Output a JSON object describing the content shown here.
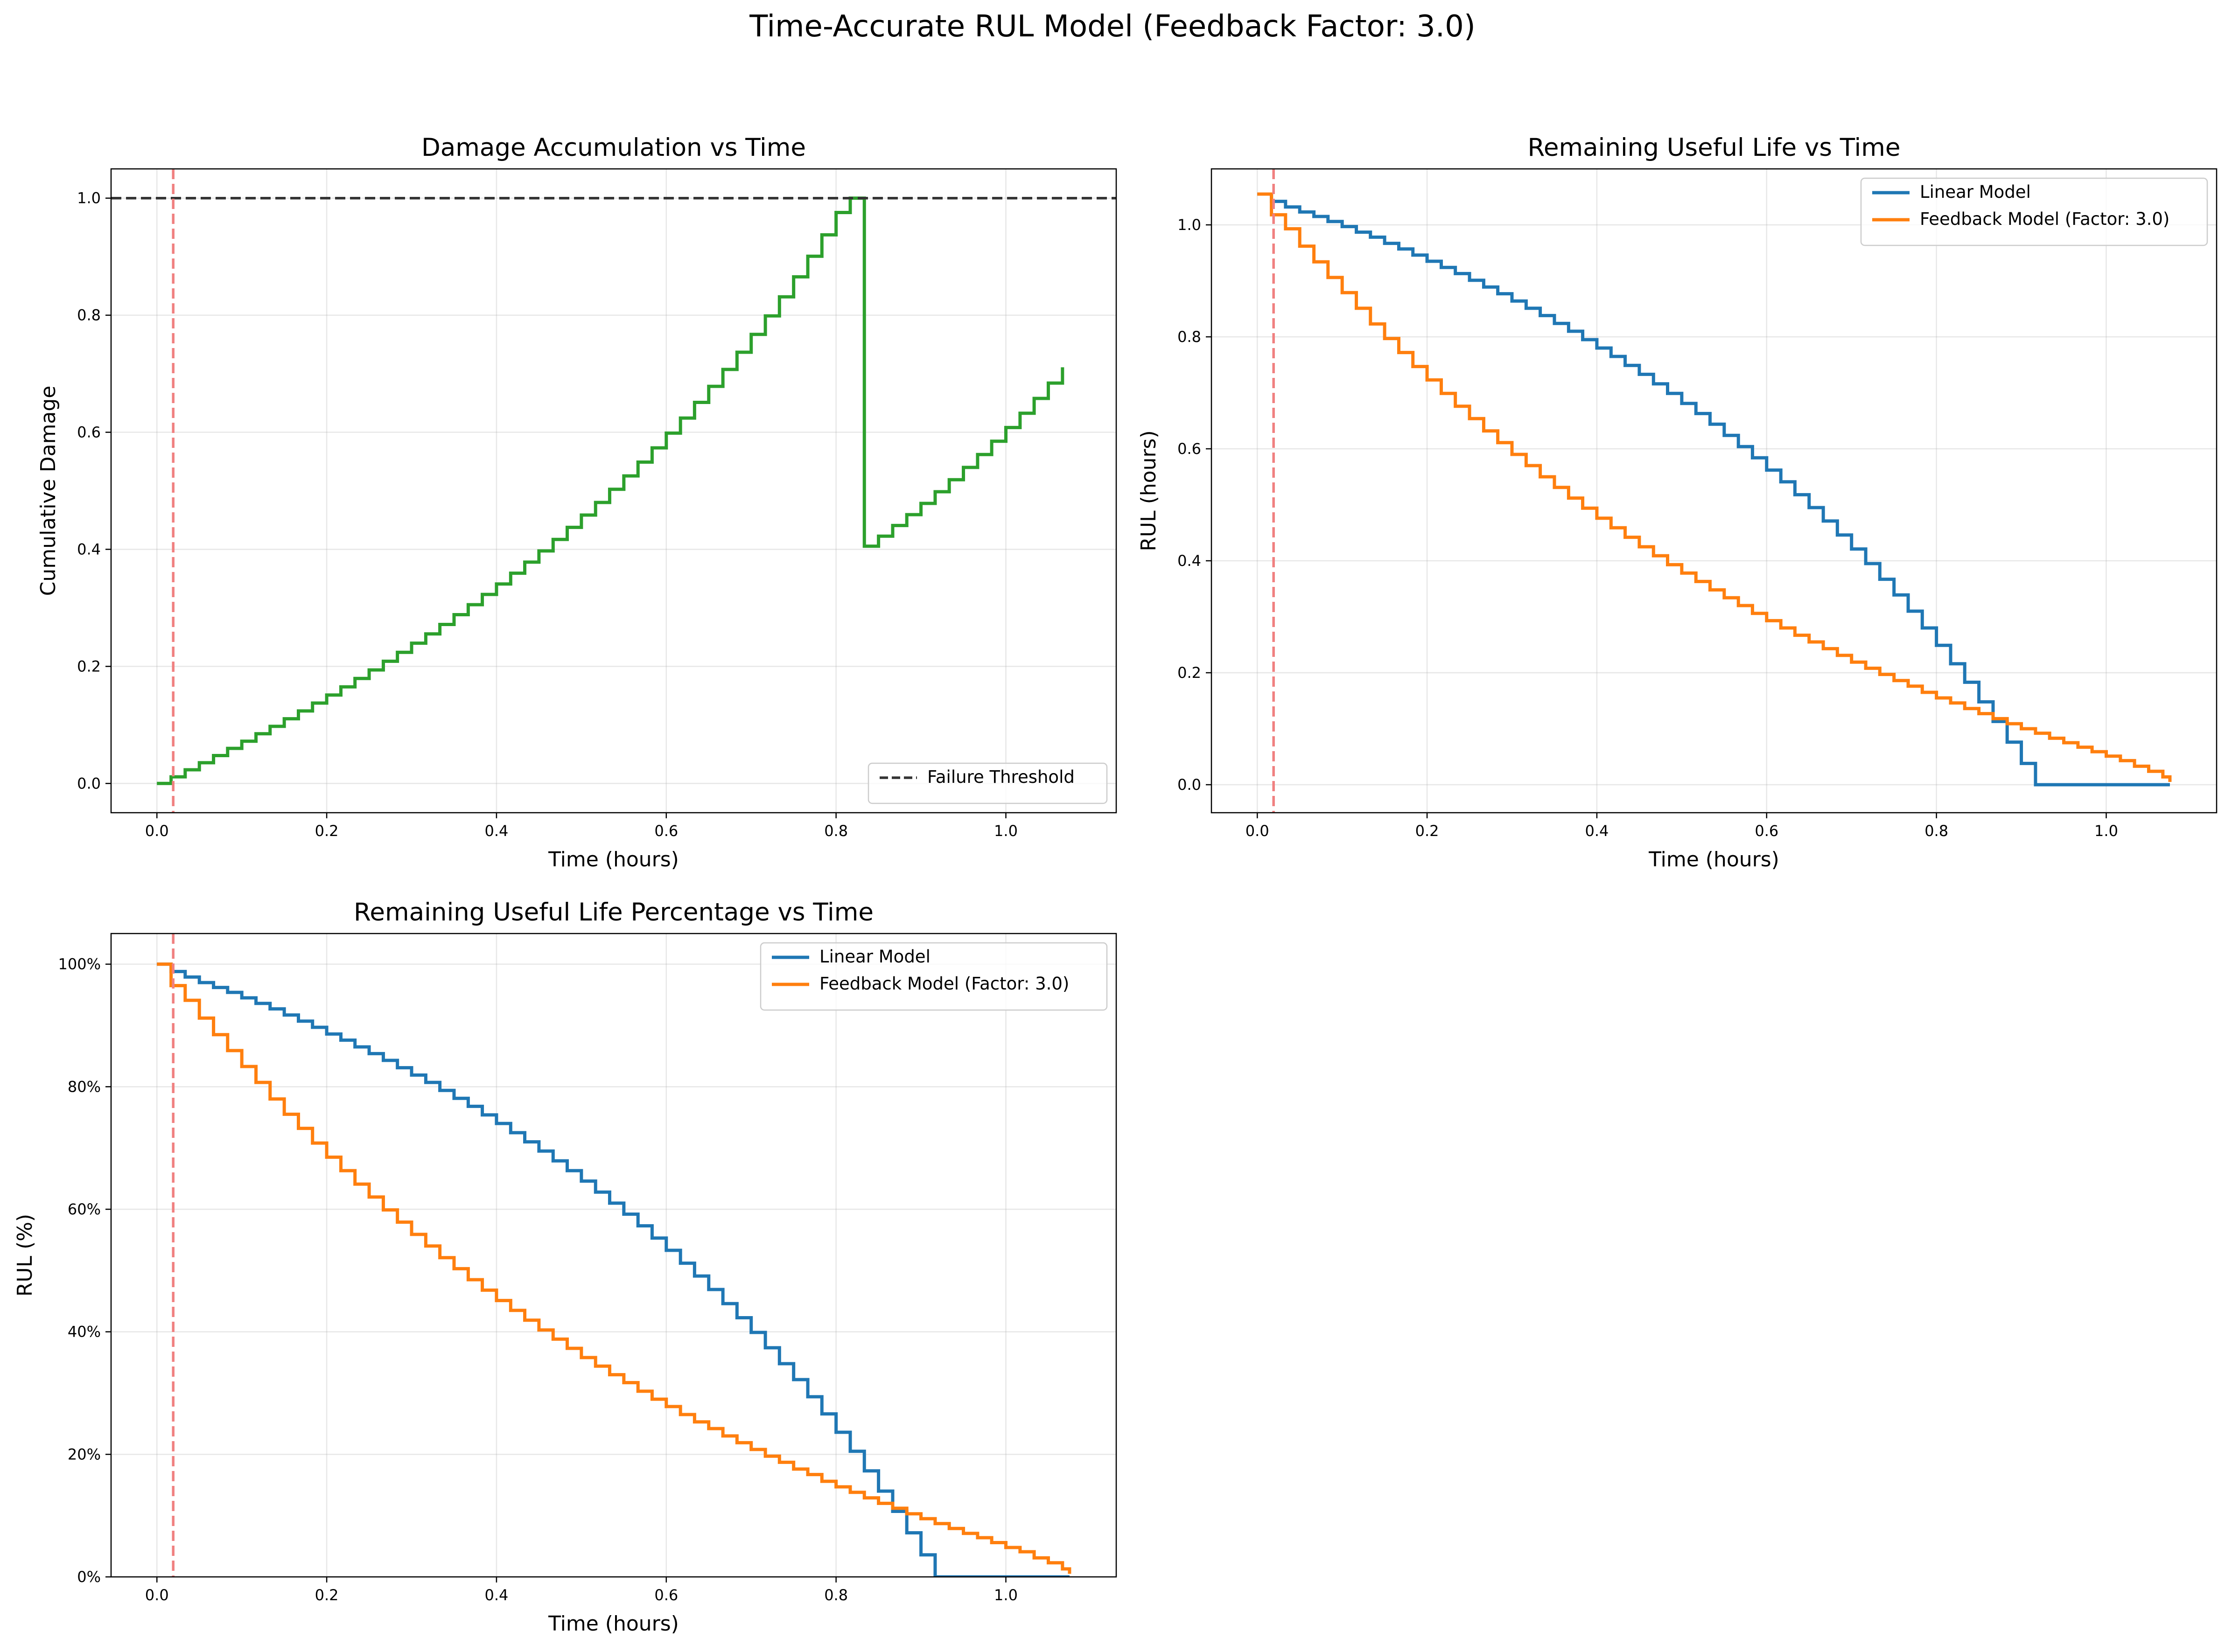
{
  "figure": {
    "suptitle": "Time-Accurate RUL Model (Feedback Factor: 3.0)"
  },
  "chart_data": [
    {
      "type": "line",
      "title": "Damage Accumulation vs Time",
      "xlabel": "Time (hours)",
      "ylabel": "Cumulative Damage",
      "xlim": [
        -0.054,
        1.13
      ],
      "ylim": [
        -0.05,
        1.05
      ],
      "xticks": [
        0.0,
        0.2,
        0.4,
        0.6,
        0.8,
        1.0
      ],
      "xtick_labels": [
        "0.0",
        "0.2",
        "0.4",
        "0.6",
        "0.8",
        "1.0"
      ],
      "yticks": [
        0.0,
        0.2,
        0.4,
        0.6,
        0.8,
        1.0
      ],
      "ytick_labels": [
        "0.0",
        "0.2",
        "0.4",
        "0.6",
        "0.8",
        "1.0"
      ],
      "grid": true,
      "legend_position": "lower right",
      "series": [
        {
          "name": "",
          "color": "#2ca02c",
          "style": "steps",
          "x": [
            0.0,
            0.0167,
            0.0333,
            0.05,
            0.0667,
            0.0833,
            0.1,
            0.1167,
            0.1333,
            0.15,
            0.1667,
            0.1833,
            0.2,
            0.2167,
            0.2333,
            0.25,
            0.2667,
            0.2833,
            0.3,
            0.3167,
            0.3333,
            0.35,
            0.3667,
            0.3833,
            0.4,
            0.4167,
            0.4333,
            0.45,
            0.4667,
            0.4833,
            0.5,
            0.5167,
            0.5333,
            0.55,
            0.5667,
            0.5833,
            0.6,
            0.6167,
            0.6333,
            0.65,
            0.6667,
            0.6833,
            0.7,
            0.7167,
            0.7333,
            0.75,
            0.7667,
            0.7833,
            0.8,
            0.8167,
            0.8333,
            0.85,
            0.8667,
            0.8833,
            0.9,
            0.9167,
            0.9333,
            0.95,
            0.9667,
            0.9833,
            1.0,
            1.0167,
            1.0333,
            1.05,
            1.0667
          ],
          "y": [
            0.0,
            0.0113,
            0.0233,
            0.0354,
            0.0476,
            0.0599,
            0.0722,
            0.0849,
            0.0976,
            0.1105,
            0.1239,
            0.1373,
            0.1511,
            0.165,
            0.1794,
            0.1939,
            0.2088,
            0.224,
            0.2396,
            0.2555,
            0.2716,
            0.2884,
            0.3054,
            0.3229,
            0.3408,
            0.3592,
            0.3781,
            0.3973,
            0.4169,
            0.4375,
            0.4586,
            0.4801,
            0.5026,
            0.5254,
            0.549,
            0.5733,
            0.5985,
            0.6242,
            0.6511,
            0.6785,
            0.7073,
            0.7367,
            0.7672,
            0.7988,
            0.8314,
            0.8656,
            0.9007,
            0.9373,
            0.9755,
            1.0,
            0.4053,
            0.4225,
            0.4407,
            0.4592,
            0.4785,
            0.4984,
            0.5189,
            0.54,
            0.562,
            0.5847,
            0.6081,
            0.6325,
            0.6578,
            0.684,
            0.711
          ]
        }
      ],
      "reference_lines": [
        {
          "orientation": "horizontal",
          "value": 1.0,
          "label": "Failure Threshold",
          "color": "#333333",
          "style": "dashed"
        },
        {
          "orientation": "vertical",
          "value": 0.0192,
          "label": "",
          "color": "#f08080",
          "style": "dashed"
        }
      ]
    },
    {
      "type": "line",
      "title": "Remaining Useful Life vs Time",
      "xlabel": "Time (hours)",
      "ylabel": "RUL (hours)",
      "xlim": [
        -0.054,
        1.13
      ],
      "ylim": [
        -0.05,
        1.1
      ],
      "xticks": [
        0.0,
        0.2,
        0.4,
        0.6,
        0.8,
        1.0
      ],
      "xtick_labels": [
        "0.0",
        "0.2",
        "0.4",
        "0.6",
        "0.8",
        "1.0"
      ],
      "yticks": [
        0.0,
        0.2,
        0.4,
        0.6,
        0.8,
        1.0
      ],
      "ytick_labels": [
        "0.0",
        "0.2",
        "0.4",
        "0.6",
        "0.8",
        "1.0"
      ],
      "grid": true,
      "legend_position": "upper right",
      "series": [
        {
          "name": "Linear Model",
          "color": "#1f77b4",
          "style": "steps",
          "x": [
            0.0,
            0.0167,
            0.0333,
            0.05,
            0.0667,
            0.0833,
            0.1,
            0.1167,
            0.1333,
            0.15,
            0.1667,
            0.1833,
            0.2,
            0.2167,
            0.2333,
            0.25,
            0.2667,
            0.2833,
            0.3,
            0.3167,
            0.3333,
            0.35,
            0.3667,
            0.3833,
            0.4,
            0.4167,
            0.4333,
            0.45,
            0.4667,
            0.4833,
            0.5,
            0.5167,
            0.5333,
            0.55,
            0.5667,
            0.5833,
            0.6,
            0.6167,
            0.6333,
            0.65,
            0.6667,
            0.6833,
            0.7,
            0.7167,
            0.7333,
            0.75,
            0.7667,
            0.7833,
            0.8,
            0.8167,
            0.8333,
            0.85,
            0.8667,
            0.8833,
            0.9,
            0.9167,
            0.9333,
            0.95,
            0.9667,
            0.9833,
            1.0,
            1.0167,
            1.0333,
            1.05,
            1.0667,
            1.075
          ],
          "y": [
            1.055,
            1.042,
            1.032,
            1.023,
            1.015,
            1.006,
            0.997,
            0.987,
            0.978,
            0.967,
            0.957,
            0.946,
            0.935,
            0.924,
            0.913,
            0.901,
            0.889,
            0.877,
            0.864,
            0.851,
            0.838,
            0.824,
            0.81,
            0.795,
            0.78,
            0.765,
            0.749,
            0.733,
            0.716,
            0.699,
            0.681,
            0.663,
            0.644,
            0.624,
            0.604,
            0.584,
            0.562,
            0.541,
            0.518,
            0.495,
            0.471,
            0.446,
            0.421,
            0.395,
            0.367,
            0.339,
            0.31,
            0.28,
            0.249,
            0.216,
            0.183,
            0.148,
            0.113,
            0.076,
            0.038,
            0.0,
            0.0,
            0.0,
            0.0,
            0.0,
            0.0,
            0.0,
            0.0,
            0.0,
            0.0,
            0.0
          ]
        },
        {
          "name": "Feedback Model (Factor: 3.0)",
          "color": "#ff7f0e",
          "style": "steps",
          "x": [
            0.0,
            0.0167,
            0.0333,
            0.05,
            0.0667,
            0.0833,
            0.1,
            0.1167,
            0.1333,
            0.15,
            0.1667,
            0.1833,
            0.2,
            0.2167,
            0.2333,
            0.25,
            0.2667,
            0.2833,
            0.3,
            0.3167,
            0.3333,
            0.35,
            0.3667,
            0.3833,
            0.4,
            0.4167,
            0.4333,
            0.45,
            0.4667,
            0.4833,
            0.5,
            0.5167,
            0.5333,
            0.55,
            0.5667,
            0.5833,
            0.6,
            0.6167,
            0.6333,
            0.65,
            0.6667,
            0.6833,
            0.7,
            0.7167,
            0.7333,
            0.75,
            0.7667,
            0.7833,
            0.8,
            0.8167,
            0.8333,
            0.85,
            0.8667,
            0.8833,
            0.9,
            0.9167,
            0.9333,
            0.95,
            0.9667,
            0.9833,
            1.0,
            1.0167,
            1.0333,
            1.05,
            1.0667,
            1.075
          ],
          "y": [
            1.055,
            1.018,
            0.993,
            0.962,
            0.934,
            0.906,
            0.879,
            0.851,
            0.823,
            0.797,
            0.772,
            0.747,
            0.723,
            0.699,
            0.676,
            0.654,
            0.632,
            0.611,
            0.59,
            0.57,
            0.55,
            0.531,
            0.512,
            0.494,
            0.476,
            0.459,
            0.442,
            0.425,
            0.409,
            0.393,
            0.378,
            0.363,
            0.348,
            0.334,
            0.32,
            0.306,
            0.293,
            0.28,
            0.267,
            0.255,
            0.243,
            0.231,
            0.219,
            0.208,
            0.197,
            0.186,
            0.176,
            0.165,
            0.155,
            0.146,
            0.136,
            0.127,
            0.118,
            0.109,
            0.1,
            0.092,
            0.083,
            0.075,
            0.067,
            0.059,
            0.051,
            0.043,
            0.033,
            0.024,
            0.014,
            0.005
          ]
        }
      ],
      "reference_lines": [
        {
          "orientation": "vertical",
          "value": 0.0192,
          "label": "",
          "color": "#f08080",
          "style": "dashed"
        }
      ]
    },
    {
      "type": "line",
      "title": "Remaining Useful Life Percentage vs Time",
      "xlabel": "Time (hours)",
      "ylabel": "RUL (%)",
      "xlim": [
        -0.054,
        1.13
      ],
      "ylim": [
        0,
        105
      ],
      "xticks": [
        0.0,
        0.2,
        0.4,
        0.6,
        0.8,
        1.0
      ],
      "xtick_labels": [
        "0.0",
        "0.2",
        "0.4",
        "0.6",
        "0.8",
        "1.0"
      ],
      "yticks": [
        0,
        20,
        40,
        60,
        80,
        100
      ],
      "ytick_labels": [
        "0%",
        "20%",
        "40%",
        "60%",
        "80%",
        "100%"
      ],
      "grid": true,
      "legend_position": "upper right",
      "series": [
        {
          "name": "Linear Model",
          "color": "#1f77b4",
          "style": "steps",
          "x": [
            0.0,
            0.0167,
            0.0333,
            0.05,
            0.0667,
            0.0833,
            0.1,
            0.1167,
            0.1333,
            0.15,
            0.1667,
            0.1833,
            0.2,
            0.2167,
            0.2333,
            0.25,
            0.2667,
            0.2833,
            0.3,
            0.3167,
            0.3333,
            0.35,
            0.3667,
            0.3833,
            0.4,
            0.4167,
            0.4333,
            0.45,
            0.4667,
            0.4833,
            0.5,
            0.5167,
            0.5333,
            0.55,
            0.5667,
            0.5833,
            0.6,
            0.6167,
            0.6333,
            0.65,
            0.6667,
            0.6833,
            0.7,
            0.7167,
            0.7333,
            0.75,
            0.7667,
            0.7833,
            0.8,
            0.8167,
            0.8333,
            0.85,
            0.8667,
            0.8833,
            0.9,
            0.9167,
            0.9333,
            0.95,
            0.9667,
            0.9833,
            1.0,
            1.0167,
            1.0333,
            1.05,
            1.0667,
            1.075
          ],
          "y": [
            100.0,
            98.8,
            97.9,
            97.0,
            96.2,
            95.4,
            94.5,
            93.6,
            92.7,
            91.7,
            90.7,
            89.7,
            88.6,
            87.6,
            86.5,
            85.4,
            84.3,
            83.1,
            81.9,
            80.7,
            79.4,
            78.1,
            76.8,
            75.4,
            74.0,
            72.5,
            71.0,
            69.5,
            67.9,
            66.3,
            64.6,
            62.8,
            61.0,
            59.2,
            57.3,
            55.3,
            53.3,
            51.2,
            49.1,
            46.9,
            44.6,
            42.3,
            39.9,
            37.4,
            34.8,
            32.2,
            29.4,
            26.6,
            23.6,
            20.5,
            17.3,
            14.0,
            10.7,
            7.2,
            3.6,
            0.0,
            0.0,
            0.0,
            0.0,
            0.0,
            0.0,
            0.0,
            0.0,
            0.0,
            0.0,
            0.0
          ]
        },
        {
          "name": "Feedback Model (Factor: 3.0)",
          "color": "#ff7f0e",
          "style": "steps",
          "x": [
            0.0,
            0.0167,
            0.0333,
            0.05,
            0.0667,
            0.0833,
            0.1,
            0.1167,
            0.1333,
            0.15,
            0.1667,
            0.1833,
            0.2,
            0.2167,
            0.2333,
            0.25,
            0.2667,
            0.2833,
            0.3,
            0.3167,
            0.3333,
            0.35,
            0.3667,
            0.3833,
            0.4,
            0.4167,
            0.4333,
            0.45,
            0.4667,
            0.4833,
            0.5,
            0.5167,
            0.5333,
            0.55,
            0.5667,
            0.5833,
            0.6,
            0.6167,
            0.6333,
            0.65,
            0.6667,
            0.6833,
            0.7,
            0.7167,
            0.7333,
            0.75,
            0.7667,
            0.7833,
            0.8,
            0.8167,
            0.8333,
            0.85,
            0.8667,
            0.8833,
            0.9,
            0.9167,
            0.9333,
            0.95,
            0.9667,
            0.9833,
            1.0,
            1.0167,
            1.0333,
            1.05,
            1.0667,
            1.075
          ],
          "y": [
            100.0,
            96.5,
            94.1,
            91.2,
            88.5,
            85.9,
            83.3,
            80.7,
            78.0,
            75.5,
            73.2,
            70.8,
            68.5,
            66.3,
            64.1,
            62.0,
            59.9,
            57.9,
            55.9,
            54.0,
            52.1,
            50.3,
            48.5,
            46.8,
            45.1,
            43.5,
            41.9,
            40.3,
            38.8,
            37.3,
            35.8,
            34.4,
            33.0,
            31.7,
            30.3,
            29.0,
            27.8,
            26.5,
            25.3,
            24.2,
            23.0,
            21.9,
            20.8,
            19.7,
            18.7,
            17.6,
            16.7,
            15.6,
            14.7,
            13.8,
            12.9,
            12.0,
            11.2,
            10.3,
            9.5,
            8.7,
            7.9,
            7.1,
            6.4,
            5.6,
            4.8,
            4.1,
            3.1,
            2.3,
            1.3,
            0.5
          ]
        }
      ],
      "reference_lines": [
        {
          "orientation": "vertical",
          "value": 0.0192,
          "label": "",
          "color": "#f08080",
          "style": "dashed"
        }
      ]
    }
  ]
}
